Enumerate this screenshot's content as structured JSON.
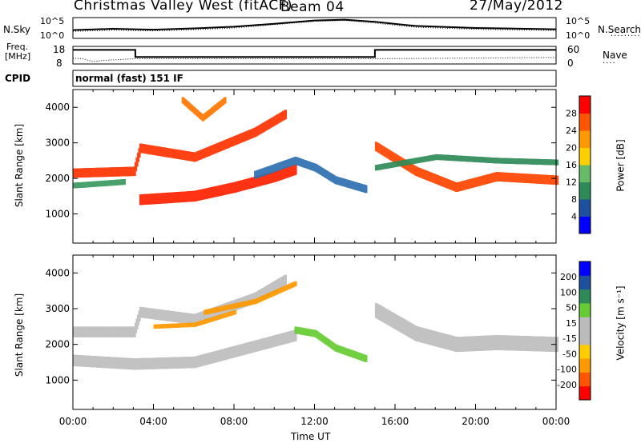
{
  "header": {
    "station": "Christmas Valley West (fitACF)",
    "beam": "Beam 04",
    "date": "27/May/2012"
  },
  "summary_panels": {
    "nsky_label": "N.Sky",
    "nsearch_label": "N.Search",
    "nsky_ticks": [
      "10^5",
      "10^0"
    ],
    "nsearch_ticks": [
      "10^5",
      "10^0"
    ],
    "freq_label_1": "Freq.",
    "freq_label_2": "[MHz]",
    "freq_ticks": [
      "18",
      "8"
    ],
    "nave_label": "Nave",
    "nave_ticks": [
      "60",
      "0"
    ],
    "cpid_label": "CPID",
    "cpid_text": "normal (fast) 151 IF"
  },
  "colors": {
    "power_scale": [
      "#0000ff",
      "#1e50a0",
      "#2e8b57",
      "#66bb66",
      "#ffd000",
      "#ff9900",
      "#ff5500",
      "#ff0000"
    ],
    "velocity_scale": [
      "#0000ff",
      "#1e50a0",
      "#2e8b57",
      "#66cc33",
      "#bbbbbb",
      "#bbbbbb",
      "#ffcc00",
      "#ff9900",
      "#ff5500",
      "#ff0000"
    ],
    "ground_scatter": "#bdbdbd"
  },
  "chart_data": [
    {
      "type": "heatmap",
      "title": "Power",
      "ylabel": "Slant Range [km]",
      "ylim": [
        180,
        4500
      ],
      "yticks": [
        "1000",
        "2000",
        "3000",
        "4000"
      ],
      "xlim": [
        0,
        24
      ],
      "colorbar_label": "Power [dB]",
      "colorbar_ticks": [
        "4",
        "8",
        "12",
        "16",
        "20",
        "24",
        "28"
      ],
      "colorbar_range": [
        0,
        32
      ],
      "bands": [
        {
          "name": "",
          "color": "#ff3300",
          "points": [
            [
              0,
              2150
            ],
            [
              3,
              2200
            ],
            [
              3.3,
              2850
            ],
            [
              6,
              2600
            ],
            [
              9,
              3300
            ],
            [
              10.5,
              3800
            ]
          ],
          "width": 260
        },
        {
          "name": "",
          "color": "#ff2200",
          "points": [
            [
              3.3,
              1400
            ],
            [
              6,
              1500
            ],
            [
              8,
              1750
            ],
            [
              10,
              2050
            ],
            [
              11,
              2250
            ]
          ],
          "width": 300
        },
        {
          "name": "",
          "color": "#2e6fb0",
          "points": [
            [
              9,
              2100
            ],
            [
              11,
              2500
            ],
            [
              12,
              2300
            ],
            [
              13,
              1950
            ],
            [
              14.5,
              1700
            ]
          ],
          "width": 220
        },
        {
          "name": "",
          "color": "#ff4400",
          "points": [
            [
              15,
              2900
            ],
            [
              17,
              2200
            ],
            [
              19,
              1750
            ],
            [
              21,
              2050
            ],
            [
              24,
              1950
            ]
          ],
          "width": 260
        },
        {
          "name": "",
          "color": "#ff7700",
          "points": [
            [
              5.4,
              4200
            ],
            [
              6.4,
              3700
            ],
            [
              7.5,
              4200
            ]
          ],
          "width": 180
        },
        {
          "name": "",
          "color": "#3a9a60",
          "points": [
            [
              0,
              1800
            ],
            [
              2.5,
              1900
            ]
          ],
          "width": 160
        },
        {
          "name": "",
          "color": "#2e8b57",
          "points": [
            [
              15,
              2300
            ],
            [
              18,
              2600
            ],
            [
              21,
              2500
            ],
            [
              24,
              2450
            ]
          ],
          "width": 160
        }
      ]
    },
    {
      "type": "heatmap",
      "title": "Velocity",
      "ylabel": "Slant Range [km]",
      "ylim": [
        180,
        4500
      ],
      "yticks": [
        "1000",
        "2000",
        "3000",
        "4000"
      ],
      "xlim": [
        0,
        24
      ],
      "xticks": [
        "00:00",
        "04:00",
        "08:00",
        "12:00",
        "16:00",
        "20:00",
        "00:00"
      ],
      "xlabel": "Time UT",
      "colorbar_label": "Velocity [m s⁻¹]",
      "colorbar_ticks": [
        "200",
        "100",
        "50",
        "15",
        "-15",
        "-50",
        "-100",
        "-200"
      ],
      "colorbar_range": [
        -250,
        250
      ],
      "bands": [
        {
          "name": "",
          "color": "#bdbdbd",
          "points": [
            [
              0,
              2350
            ],
            [
              3,
              2350
            ],
            [
              3.3,
              2900
            ],
            [
              6,
              2700
            ],
            [
              9,
              3300
            ],
            [
              10.5,
              3800
            ]
          ],
          "width": 300
        },
        {
          "name": "",
          "color": "#bdbdbd",
          "points": [
            [
              0,
              1550
            ],
            [
              3,
              1450
            ],
            [
              6,
              1500
            ],
            [
              8,
              1800
            ],
            [
              11,
              2250
            ]
          ],
          "width": 320
        },
        {
          "name": "",
          "color": "#66cc33",
          "points": [
            [
              11,
              2400
            ],
            [
              12,
              2300
            ],
            [
              13,
              1900
            ],
            [
              14.5,
              1600
            ]
          ],
          "width": 200
        },
        {
          "name": "",
          "color": "#bdbdbd",
          "points": [
            [
              15,
              2950
            ],
            [
              17,
              2300
            ],
            [
              19,
              2000
            ],
            [
              21,
              2050
            ],
            [
              24,
              2000
            ]
          ],
          "width": 420
        },
        {
          "name": "",
          "color": "#ff9900",
          "points": [
            [
              6.5,
              2900
            ],
            [
              9,
              3200
            ],
            [
              11,
              3700
            ]
          ],
          "width": 140
        },
        {
          "name": "",
          "color": "#ff9900",
          "points": [
            [
              4,
              2500
            ],
            [
              6,
              2550
            ],
            [
              8,
              2900
            ]
          ],
          "width": 120
        }
      ]
    }
  ],
  "summary_series": {
    "nsky": [
      [
        0,
        2.0
      ],
      [
        2,
        2.3
      ],
      [
        4,
        2.1
      ],
      [
        6,
        2.4
      ],
      [
        8,
        2.8
      ],
      [
        10,
        3.5
      ],
      [
        12,
        4.3
      ],
      [
        13.5,
        4.5
      ],
      [
        15,
        4.0
      ],
      [
        17,
        3.0
      ],
      [
        20,
        2.5
      ],
      [
        24,
        2.2
      ]
    ],
    "nsearch": [
      [
        0,
        1.7
      ],
      [
        2,
        2.0
      ],
      [
        4,
        1.8
      ],
      [
        6,
        2.1
      ],
      [
        8,
        2.5
      ],
      [
        10,
        3.3
      ],
      [
        12,
        4.1
      ],
      [
        13.5,
        4.3
      ],
      [
        15,
        3.7
      ],
      [
        17,
        2.7
      ],
      [
        20,
        2.2
      ],
      [
        24,
        1.9
      ]
    ],
    "freq": [
      [
        0,
        16
      ],
      [
        3.1,
        16
      ],
      [
        3.1,
        12
      ],
      [
        15,
        12
      ],
      [
        15,
        16
      ],
      [
        24,
        16
      ]
    ],
    "nave": [
      [
        0,
        20
      ],
      [
        0.5,
        18
      ],
      [
        1,
        8
      ],
      [
        1.5,
        12
      ],
      [
        3.1,
        18
      ],
      [
        15,
        18
      ],
      [
        24,
        22
      ]
    ]
  }
}
